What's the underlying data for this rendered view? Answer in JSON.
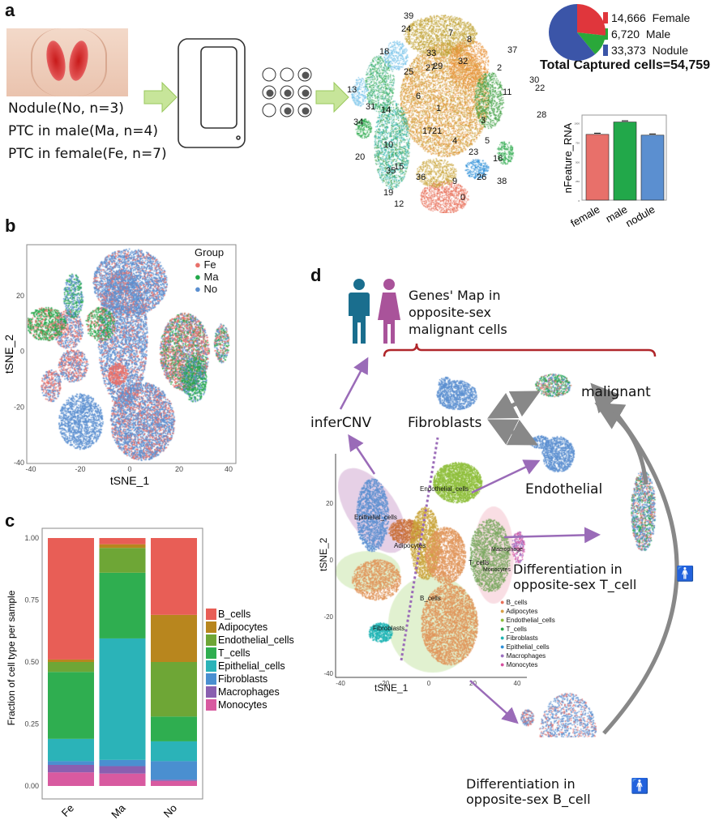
{
  "panels": {
    "a": {
      "label": "a",
      "sample_lines": [
        "Nodule(No, n=3)",
        "PTC in male(Ma, n=4)",
        "PTC in female(Fe, n=7)"
      ],
      "cluster_labels": [
        "0",
        "1",
        "2",
        "3",
        "4",
        "5",
        "6",
        "7",
        "8",
        "9",
        "10",
        "11",
        "12",
        "13",
        "14",
        "15",
        "16",
        "17",
        "18",
        "19",
        "20",
        "21",
        "22",
        "23",
        "24",
        "25",
        "26",
        "27",
        "28",
        "29",
        "30",
        "31",
        "32",
        "33",
        "34",
        "35",
        "36",
        "37",
        "38",
        "39"
      ],
      "pie": {
        "entries": [
          {
            "value": "14,666",
            "name": "Female",
            "count": 14666,
            "color": "#e0363c"
          },
          {
            "value": "6,720",
            "name": "Male",
            "count": 6720,
            "color": "#2aa83a"
          },
          {
            "value": "33,373",
            "name": "Nodule",
            "count": 33373,
            "color": "#3b55a8"
          }
        ],
        "total": "Total Captured cells=54,759"
      }
    },
    "b": {
      "label": "b"
    },
    "c": {
      "label": "c"
    },
    "d": {
      "label": "d",
      "genes_map": "Genes' Map in opposite-sex malignant cells",
      "infercnv": "inferCNV",
      "fibroblasts": "Fibroblasts",
      "malignant": "malignant",
      "endothelial": "Endothelial",
      "diff_t": "Differentiation in opposite-sex T_cell",
      "diff_b": "Differentiation in opposite-sex B_cell",
      "cluster_labels": [
        "Endothelial_cells",
        "Epithelial_cells",
        "Adipocytes",
        "T_cells",
        "Macrophage",
        "Monocytes",
        "B_cells",
        "Fibroblasts"
      ],
      "xlabel": "tSNE_1",
      "ylabel": "tSNE_2",
      "xticks": [
        "-40",
        "-20",
        "0",
        "20",
        "40"
      ],
      "yticks": [
        "20",
        "0",
        "-20",
        "-40"
      ],
      "legend": [
        {
          "name": "B_cells",
          "color": "#e8705a"
        },
        {
          "name": "Adipocytes",
          "color": "#d9a046"
        },
        {
          "name": "Endothelial_cells",
          "color": "#8fbf3c"
        },
        {
          "name": "T_cells",
          "color": "#2aa84a"
        },
        {
          "name": "Fibroblasts",
          "color": "#1fb4b4"
        },
        {
          "name": "Epithelial_cells",
          "color": "#2d8fd8"
        },
        {
          "name": "Macrophages",
          "color": "#9b6fc0"
        },
        {
          "name": "Monocytes",
          "color": "#d650a0"
        }
      ]
    }
  },
  "colors": {
    "male_icon": "#1a6e8e",
    "female_icon": "#a9539a",
    "arrow_purple": "#9a6bb8",
    "arrow_green": "#a6d46a",
    "bracket": "#b0262a",
    "arrow_gray": "#888888"
  },
  "chart_data": [
    {
      "type": "pie",
      "categories": [
        "Female",
        "Male",
        "Nodule"
      ],
      "values": [
        14666,
        6720,
        33373
      ],
      "title": "Total Captured cells=54,759"
    },
    {
      "type": "bar",
      "categories": [
        "female",
        "male",
        "nodule"
      ],
      "values": [
        850,
        1010,
        840
      ],
      "colors": [
        "#e8706a",
        "#22a84a",
        "#5b8fd0"
      ],
      "error_bars": true,
      "ylabel": "nFeature_RNA",
      "ylim": [
        0,
        1100
      ],
      "yticks": [
        "0",
        "250",
        "500",
        "750",
        "1000"
      ]
    },
    {
      "type": "scatter",
      "xlabel": "tSNE_1",
      "ylabel": "tSNE_2",
      "xlim": [
        -40,
        40
      ],
      "ylim": [
        -40,
        38
      ],
      "xticks": [
        "-40",
        "-20",
        "0",
        "20",
        "40"
      ],
      "yticks": [
        "-40",
        "-20",
        "0",
        "20"
      ],
      "legend_title": "Group",
      "series": [
        {
          "name": "Fe",
          "color": "#e8706a"
        },
        {
          "name": "Ma",
          "color": "#22a84a"
        },
        {
          "name": "No",
          "color": "#5b8fd0"
        }
      ],
      "legend_position": "top-right"
    },
    {
      "type": "bar",
      "stacked": true,
      "categories": [
        "Fe",
        "Ma",
        "No"
      ],
      "ylabel": "Fraction of cell type per sample",
      "ylim": [
        0,
        1
      ],
      "yticks": [
        "0.00",
        "0.25",
        "0.50",
        "0.75",
        "1.00"
      ],
      "legend_position": "right",
      "series": [
        {
          "name": "B_cells",
          "color": "#e85e56",
          "values": [
            0.49,
            0.025,
            0.31
          ]
        },
        {
          "name": "Adipocytes",
          "color": "#b8861e",
          "values": [
            0.01,
            0.015,
            0.19
          ]
        },
        {
          "name": "Endothelial_cells",
          "color": "#6ea636",
          "values": [
            0.04,
            0.1,
            0.22
          ]
        },
        {
          "name": "T_cells",
          "color": "#2fae50",
          "values": [
            0.27,
            0.265,
            0.1
          ]
        },
        {
          "name": "Epithelial_cells",
          "color": "#2bb3b8",
          "values": [
            0.09,
            0.49,
            0.08
          ]
        },
        {
          "name": "Fibroblasts",
          "color": "#4a8fd0",
          "values": [
            0.015,
            0.025,
            0.075
          ]
        },
        {
          "name": "Macrophages",
          "color": "#8a5fb0",
          "values": [
            0.03,
            0.03,
            0.005
          ]
        },
        {
          "name": "Monocytes",
          "color": "#d85aa0",
          "values": [
            0.055,
            0.05,
            0.02
          ]
        }
      ]
    }
  ]
}
